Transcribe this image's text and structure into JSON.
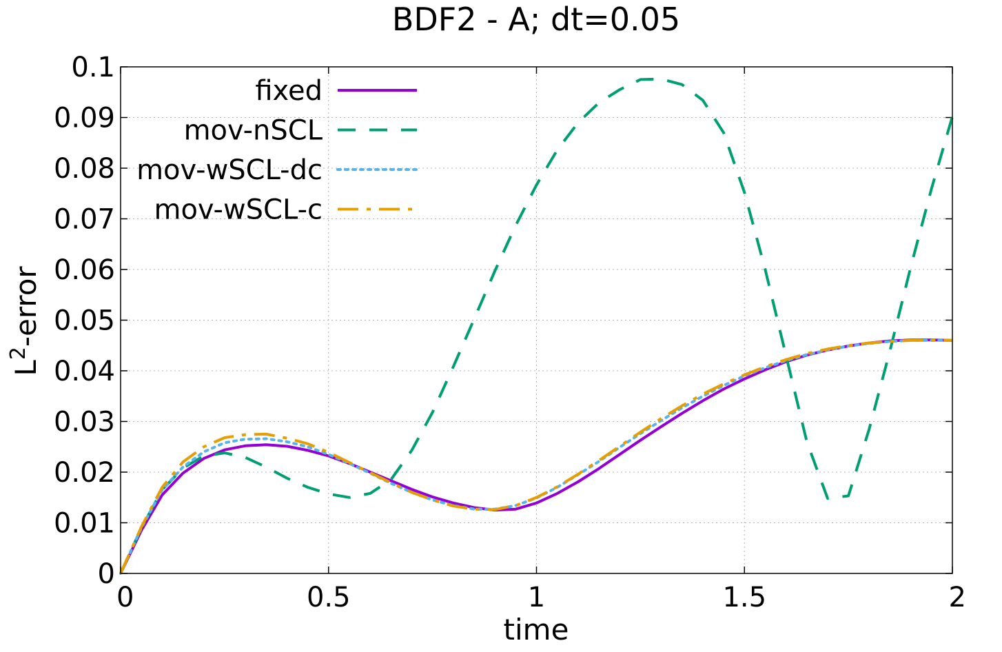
{
  "chart_data": {
    "type": "line",
    "title": "BDF2 - A; dt=0.05",
    "xlabel": "time",
    "ylabel_base": "L",
    "ylabel_sup": "2",
    "ylabel_rest": "-error",
    "xlim": [
      0,
      2
    ],
    "ylim": [
      0,
      0.1
    ],
    "xticks": [
      0,
      0.5,
      1,
      1.5,
      2
    ],
    "xtick_labels": [
      "0",
      "0.5",
      "1",
      "1.5",
      "2"
    ],
    "yticks": [
      0,
      0.01,
      0.02,
      0.03,
      0.04,
      0.05,
      0.06,
      0.07,
      0.08,
      0.09,
      0.1
    ],
    "ytick_labels": [
      "0",
      "0.01",
      "0.02",
      "0.03",
      "0.04",
      "0.05",
      "0.06",
      "0.07",
      "0.08",
      "0.09",
      "0.1"
    ],
    "grid": true,
    "legend_position": "top-left",
    "series": [
      {
        "name": "fixed",
        "color": "#9400d3",
        "dash": "solid",
        "x": [
          0,
          0.05,
          0.1,
          0.15,
          0.2,
          0.25,
          0.3,
          0.35,
          0.4,
          0.45,
          0.5,
          0.55,
          0.6,
          0.65,
          0.7,
          0.75,
          0.8,
          0.85,
          0.9,
          0.95,
          1.0,
          1.05,
          1.1,
          1.15,
          1.2,
          1.25,
          1.3,
          1.35,
          1.4,
          1.45,
          1.5,
          1.55,
          1.6,
          1.65,
          1.7,
          1.75,
          1.8,
          1.85,
          1.9,
          1.95,
          2.0
        ],
        "values": [
          0,
          0.0085,
          0.0155,
          0.0198,
          0.0227,
          0.0244,
          0.0252,
          0.0254,
          0.0251,
          0.0243,
          0.0232,
          0.0217,
          0.02,
          0.0183,
          0.0166,
          0.0151,
          0.0139,
          0.013,
          0.0125,
          0.0127,
          0.0139,
          0.0158,
          0.0181,
          0.0207,
          0.0235,
          0.0263,
          0.029,
          0.0316,
          0.0341,
          0.0364,
          0.0384,
          0.0402,
          0.0418,
          0.0431,
          0.0441,
          0.0449,
          0.0455,
          0.0459,
          0.0461,
          0.0461,
          0.046
        ]
      },
      {
        "name": "mov-nSCL",
        "color": "#009e73",
        "dash": "dashed",
        "x": [
          0,
          0.05,
          0.1,
          0.15,
          0.2,
          0.25,
          0.3,
          0.35,
          0.4,
          0.45,
          0.5,
          0.55,
          0.6,
          0.65,
          0.7,
          0.75,
          0.8,
          0.85,
          0.9,
          0.95,
          1.0,
          1.05,
          1.1,
          1.15,
          1.2,
          1.25,
          1.3,
          1.35,
          1.4,
          1.45,
          1.5,
          1.55,
          1.6,
          1.65,
          1.7,
          1.75,
          1.8,
          1.85,
          1.9,
          1.95,
          2.0
        ],
        "values": [
          0,
          0.009,
          0.0165,
          0.0208,
          0.0232,
          0.0238,
          0.0229,
          0.021,
          0.0188,
          0.017,
          0.0157,
          0.015,
          0.0158,
          0.0185,
          0.0243,
          0.0318,
          0.0408,
          0.0502,
          0.0597,
          0.0687,
          0.0767,
          0.0836,
          0.089,
          0.0929,
          0.0955,
          0.0975,
          0.0976,
          0.0965,
          0.0934,
          0.087,
          0.0752,
          0.06,
          0.043,
          0.026,
          0.0148,
          0.0153,
          0.0285,
          0.044,
          0.0605,
          0.076,
          0.0902
        ]
      },
      {
        "name": "mov-wSCL-dc",
        "color": "#56b4e9",
        "dash": "dotted",
        "x": [
          0,
          0.05,
          0.1,
          0.15,
          0.2,
          0.25,
          0.3,
          0.35,
          0.4,
          0.45,
          0.5,
          0.55,
          0.6,
          0.65,
          0.7,
          0.75,
          0.8,
          0.85,
          0.9,
          0.95,
          1.0,
          1.05,
          1.1,
          1.15,
          1.2,
          1.25,
          1.3,
          1.35,
          1.4,
          1.45,
          1.5,
          1.55,
          1.6,
          1.65,
          1.7,
          1.75,
          1.8,
          1.85,
          1.9,
          1.95,
          2.0
        ],
        "values": [
          0,
          0.009,
          0.0165,
          0.021,
          0.024,
          0.0258,
          0.0265,
          0.0266,
          0.026,
          0.025,
          0.0235,
          0.0217,
          0.0198,
          0.0178,
          0.016,
          0.0145,
          0.0134,
          0.0127,
          0.0127,
          0.0134,
          0.0149,
          0.017,
          0.0195,
          0.0221,
          0.0249,
          0.0276,
          0.0302,
          0.0327,
          0.035,
          0.0371,
          0.039,
          0.0406,
          0.042,
          0.0432,
          0.0441,
          0.0449,
          0.0454,
          0.0458,
          0.046,
          0.046,
          0.046
        ]
      },
      {
        "name": "mov-wSCL-c",
        "color": "#e69f00",
        "dash": "dashdot",
        "x": [
          0,
          0.05,
          0.1,
          0.15,
          0.2,
          0.25,
          0.3,
          0.35,
          0.4,
          0.45,
          0.5,
          0.55,
          0.6,
          0.65,
          0.7,
          0.75,
          0.8,
          0.85,
          0.9,
          0.95,
          1.0,
          1.05,
          1.1,
          1.15,
          1.2,
          1.25,
          1.3,
          1.35,
          1.4,
          1.45,
          1.5,
          1.55,
          1.6,
          1.65,
          1.7,
          1.75,
          1.8,
          1.85,
          1.9,
          1.95,
          2.0
        ],
        "values": [
          0,
          0.0092,
          0.017,
          0.022,
          0.025,
          0.0268,
          0.0274,
          0.0275,
          0.0267,
          0.0256,
          0.0239,
          0.0219,
          0.0199,
          0.0179,
          0.016,
          0.0145,
          0.0133,
          0.0127,
          0.0126,
          0.0134,
          0.015,
          0.0171,
          0.0196,
          0.0223,
          0.0251,
          0.0279,
          0.0306,
          0.0331,
          0.0354,
          0.0374,
          0.0392,
          0.0408,
          0.0422,
          0.0434,
          0.0443,
          0.045,
          0.0455,
          0.0458,
          0.046,
          0.046,
          0.046
        ]
      }
    ]
  }
}
